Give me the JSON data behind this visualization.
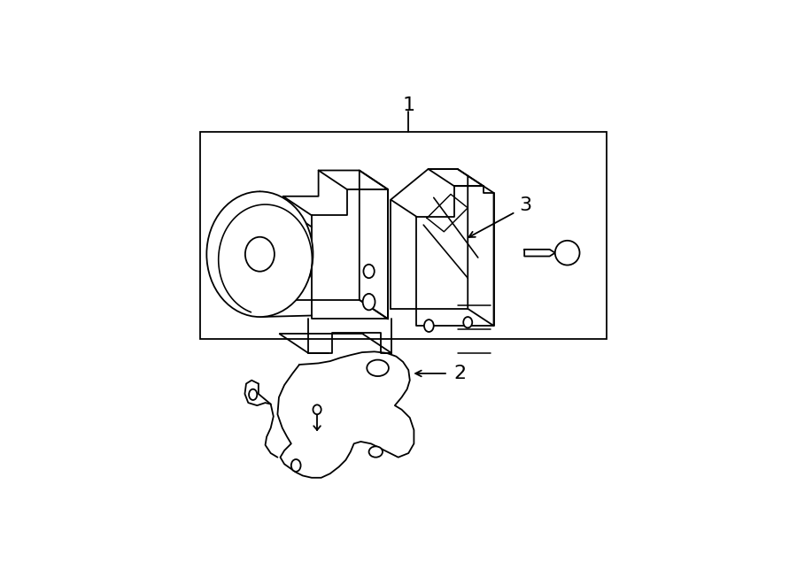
{
  "bg_color": "#ffffff",
  "line_color": "#000000",
  "lw": 1.3,
  "fig_width": 9.0,
  "fig_height": 6.61,
  "dpi": 100,
  "label_1": "1",
  "label_2": "2",
  "label_3": "3"
}
